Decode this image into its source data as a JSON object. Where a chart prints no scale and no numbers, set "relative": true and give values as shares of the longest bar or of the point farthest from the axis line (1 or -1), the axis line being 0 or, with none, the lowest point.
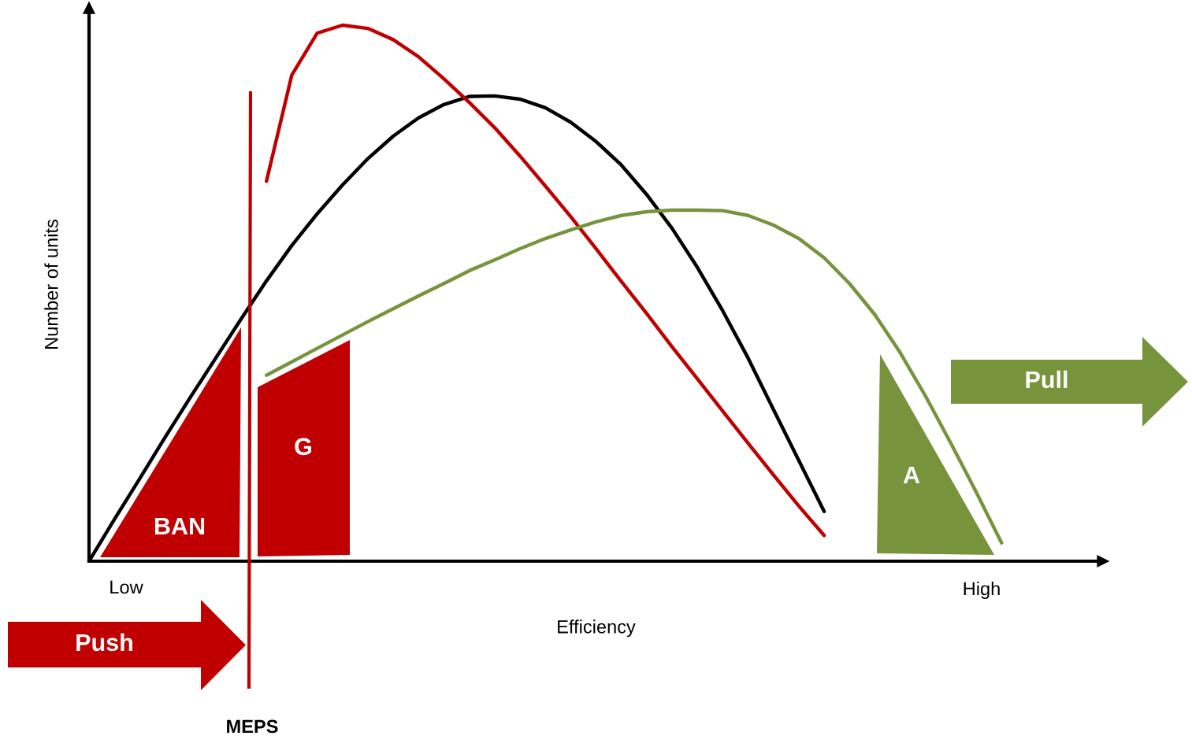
{
  "chart_data": {
    "type": "line",
    "relative": true,
    "xlabel": "Efficiency",
    "ylabel": "Number of units",
    "categories": [
      null,
      null,
      null,
      null,
      null,
      null,
      null,
      null,
      null,
      null,
      null,
      null,
      null,
      null,
      null,
      null,
      null,
      null,
      null,
      null,
      null,
      null,
      null,
      null,
      null,
      null,
      null,
      null,
      null,
      null,
      null,
      null,
      null,
      null,
      null,
      null,
      null,
      null,
      null,
      null,
      null
    ],
    "series": [
      {
        "color": "#000000",
        "values": [
          0,
          0.078,
          0.154,
          0.231,
          0.306,
          0.379,
          0.452,
          0.523,
          0.589,
          0.648,
          0.702,
          0.751,
          0.793,
          0.827,
          0.852,
          0.867,
          0.868,
          0.862,
          0.846,
          0.819,
          0.783,
          0.739,
          0.684,
          0.621,
          0.548,
          0.467,
          0.379,
          0.283,
          0.188,
          0.093,
          null,
          null,
          null,
          null,
          null,
          null,
          null,
          null,
          null,
          null,
          null
        ]
      },
      {
        "color": "#c00000",
        "values": [
          null,
          null,
          null,
          null,
          null,
          null,
          null,
          0.709,
          0.907,
          0.985,
          1.0,
          0.994,
          0.973,
          0.941,
          0.9,
          0.856,
          0.809,
          0.756,
          0.7,
          0.643,
          0.583,
          0.522,
          0.462,
          0.4,
          0.34,
          0.28,
          0.22,
          0.161,
          0.103,
          0.048,
          null,
          null,
          null,
          null,
          null,
          null,
          null,
          null,
          null,
          null,
          null
        ]
      },
      {
        "color": "#77933c",
        "values": [
          null,
          null,
          null,
          null,
          null,
          null,
          null,
          0.347,
          0.372,
          0.397,
          0.422,
          0.447,
          0.471,
          0.495,
          0.518,
          0.542,
          0.562,
          0.583,
          0.602,
          0.618,
          0.633,
          0.645,
          0.652,
          0.655,
          0.655,
          0.654,
          0.645,
          0.627,
          0.602,
          0.566,
          0.518,
          0.46,
          0.389,
          0.308,
          0.22,
          0.129,
          0.034,
          null,
          null,
          null,
          null
        ]
      }
    ],
    "annotations": [
      "BAN",
      "G",
      "A",
      "Push",
      "Pull",
      "Low",
      "High",
      "MEPS"
    ]
  }
}
